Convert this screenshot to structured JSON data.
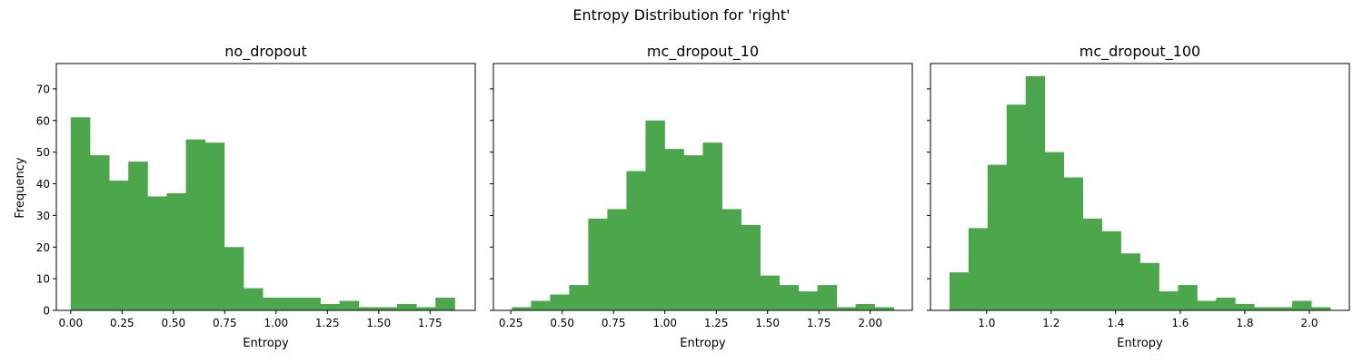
{
  "figure": {
    "suptitle": "Entropy Distribution for 'right'",
    "shared_ylabel": "Frequency",
    "bar_color": "#4ca64c"
  },
  "chart_data": [
    {
      "type": "bar",
      "title": "no_dropout",
      "xlabel": "Entropy",
      "ylabel": "Frequency",
      "xlim": [
        -0.07,
        1.97
      ],
      "ylim": [
        0,
        78
      ],
      "xticks": [
        0.0,
        0.25,
        0.5,
        0.75,
        1.0,
        1.25,
        1.5,
        1.75
      ],
      "xtick_labels": [
        "0.00",
        "0.25",
        "0.50",
        "0.75",
        "1.00",
        "1.25",
        "1.50",
        "1.75"
      ],
      "yticks": [
        0,
        10,
        20,
        30,
        40,
        50,
        60,
        70
      ],
      "ytick_labels": [
        "0",
        "10",
        "20",
        "30",
        "40",
        "50",
        "60",
        "70"
      ],
      "bin_start": 0.0,
      "bin_width": 0.0935,
      "values": [
        61,
        49,
        41,
        47,
        36,
        37,
        54,
        53,
        20,
        7,
        4,
        4,
        4,
        2,
        3,
        1,
        1,
        2,
        1,
        4
      ]
    },
    {
      "type": "bar",
      "title": "mc_dropout_10",
      "xlabel": "Entropy",
      "ylabel": "",
      "xlim": [
        0.165,
        2.205
      ],
      "ylim": [
        0,
        78
      ],
      "xticks": [
        0.25,
        0.5,
        0.75,
        1.0,
        1.25,
        1.5,
        1.75,
        2.0
      ],
      "xtick_labels": [
        "0.25",
        "0.50",
        "0.75",
        "1.00",
        "1.25",
        "1.50",
        "1.75",
        "2.00"
      ],
      "yticks": [
        0,
        10,
        20,
        30,
        40,
        50,
        60,
        70
      ],
      "ytick_labels": [
        "",
        "",
        "",
        "",
        "",
        "",
        "",
        ""
      ],
      "bin_start": 0.255,
      "bin_width": 0.093,
      "values": [
        1,
        3,
        5,
        8,
        29,
        32,
        44,
        60,
        51,
        49,
        53,
        32,
        27,
        11,
        8,
        6,
        8,
        1,
        2,
        1
      ]
    },
    {
      "type": "bar",
      "title": "mc_dropout_100",
      "xlabel": "Entropy",
      "ylabel": "",
      "xlim": [
        0.826,
        2.124
      ],
      "ylim": [
        0,
        78
      ],
      "xticks": [
        1.0,
        1.2,
        1.4,
        1.6,
        1.8,
        2.0
      ],
      "xtick_labels": [
        "1.0",
        "1.2",
        "1.4",
        "1.6",
        "1.8",
        "2.0"
      ],
      "yticks": [
        0,
        10,
        20,
        30,
        40,
        50,
        60,
        70
      ],
      "ytick_labels": [
        "",
        "",
        "",
        "",
        "",
        "",
        "",
        ""
      ],
      "bin_start": 0.885,
      "bin_width": 0.059,
      "values": [
        12,
        26,
        46,
        65,
        74,
        50,
        42,
        29,
        25,
        18,
        15,
        6,
        8,
        3,
        4,
        2,
        1,
        1,
        3,
        1
      ]
    }
  ]
}
